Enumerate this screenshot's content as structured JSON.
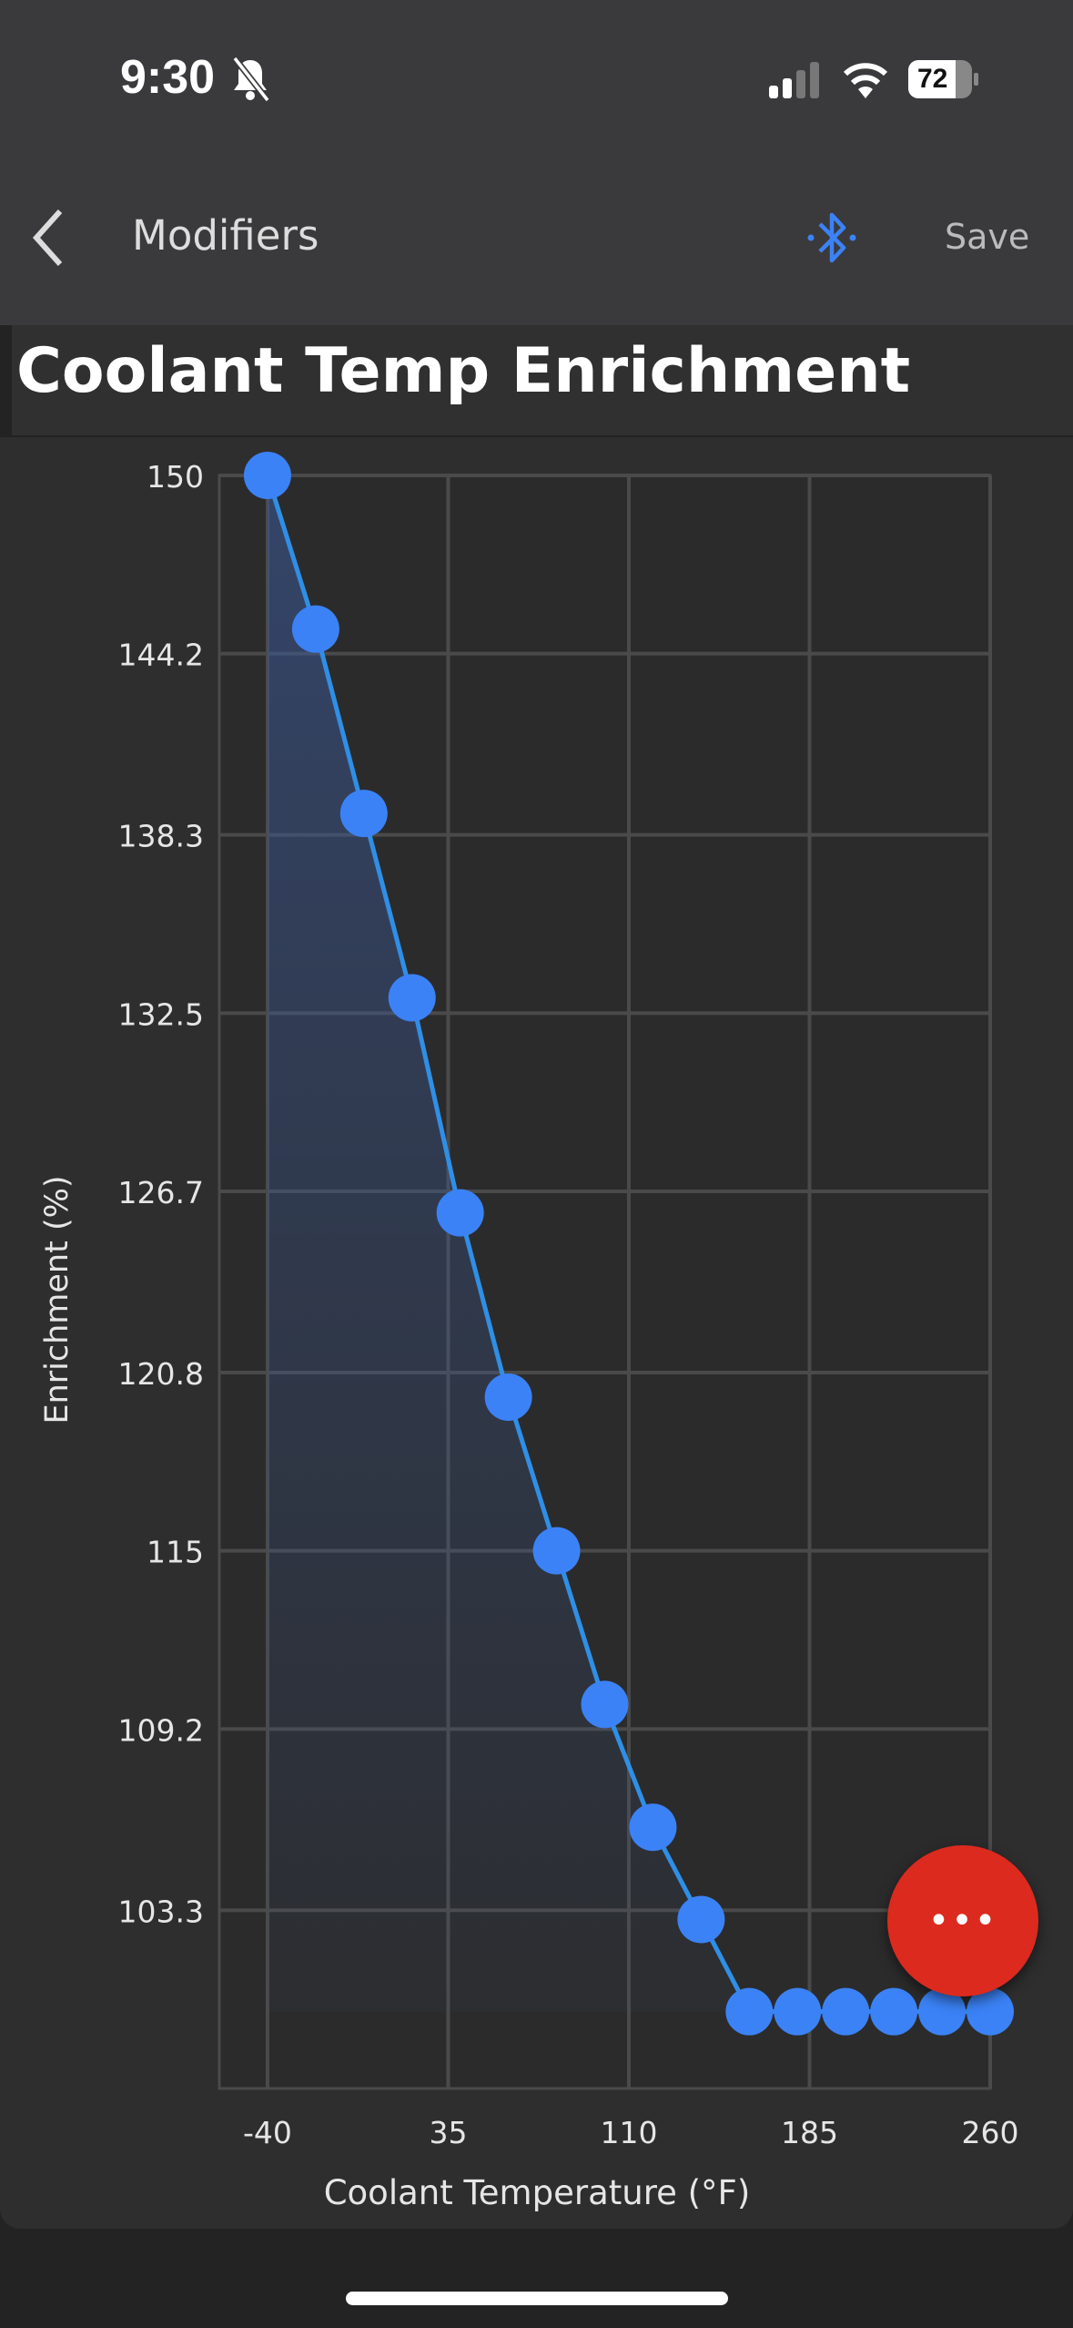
{
  "status_bar": {
    "time": "9:30",
    "battery": "72",
    "icons": [
      "bell-slash-icon",
      "signal-icon",
      "wifi-icon",
      "battery-icon"
    ]
  },
  "nav": {
    "back_icon": "chevron-left-icon",
    "title": "Modifiers",
    "bluetooth_icon": "bluetooth-icon",
    "save_label": "Save",
    "accent": "#3b82f6"
  },
  "page": {
    "title": "Coolant Temp Enrichment"
  },
  "fab": {
    "label": "•••",
    "color": "#dc2a1e"
  },
  "chart_data": {
    "type": "area",
    "xlabel": "Coolant Temperature (°F)",
    "ylabel": "Enrichment (%)",
    "x_ticks": [
      "-40",
      "35",
      "110",
      "185",
      "260"
    ],
    "y_ticks": [
      "150",
      "144.2",
      "138.3",
      "132.5",
      "126.7",
      "120.8",
      "115",
      "109.2",
      "103.3"
    ],
    "xlim": [
      -60,
      260
    ],
    "ylim": [
      97.5,
      150
    ],
    "grid": true,
    "x": [
      -40,
      -20,
      0,
      20,
      40,
      60,
      80,
      100,
      120,
      140,
      160,
      180,
      200,
      220,
      240,
      260
    ],
    "values": [
      150,
      145,
      139,
      133,
      126,
      120,
      115,
      110,
      106,
      103,
      100,
      100,
      100,
      100,
      100,
      100
    ],
    "line_color": "#2f8fe6",
    "point_color": "#3b82f6"
  }
}
